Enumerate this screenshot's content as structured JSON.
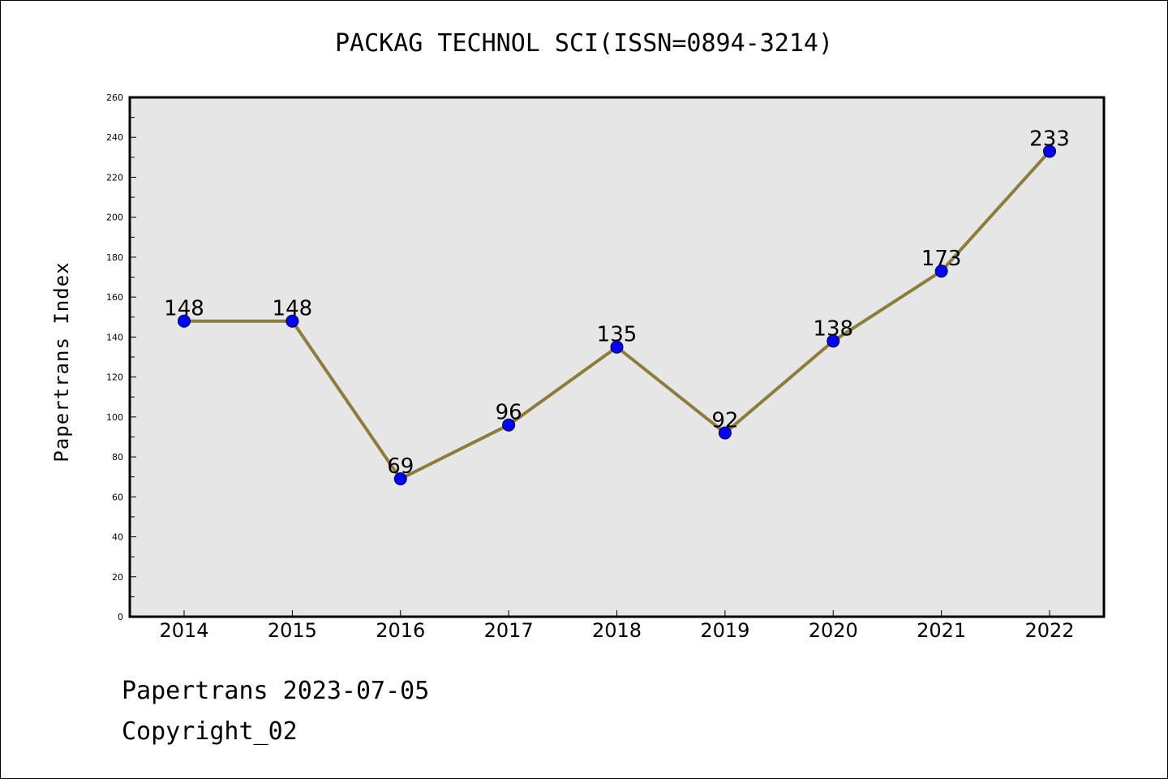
{
  "page": {
    "date_line": "Papertrans 2023-07-05",
    "copyright_line": "Copyright_02"
  },
  "chart_data": {
    "type": "line",
    "title": "PACKAG TECHNOL SCI(ISSN=0894-3214)",
    "xlabel": "",
    "ylabel": "Papertrans Index",
    "categories": [
      "2014",
      "2015",
      "2016",
      "2017",
      "2018",
      "2019",
      "2020",
      "2021",
      "2022"
    ],
    "series": [
      {
        "values": [
          148,
          148,
          69,
          96,
          135,
          92,
          138,
          173,
          233
        ],
        "line_color": "#8b7d3a",
        "marker_color": "#0000ff"
      }
    ],
    "data_labels": [
      "148",
      "148",
      "69",
      "96",
      "135",
      "92",
      "138",
      "173",
      "233"
    ],
    "ylim": [
      0,
      260
    ],
    "yticks_major": [
      0,
      20,
      40,
      60,
      80,
      100,
      120,
      140,
      160,
      180,
      200,
      220,
      240,
      260
    ],
    "yticks_minor_step": 10,
    "grid": false,
    "plot_background": "#e6e6e6"
  }
}
